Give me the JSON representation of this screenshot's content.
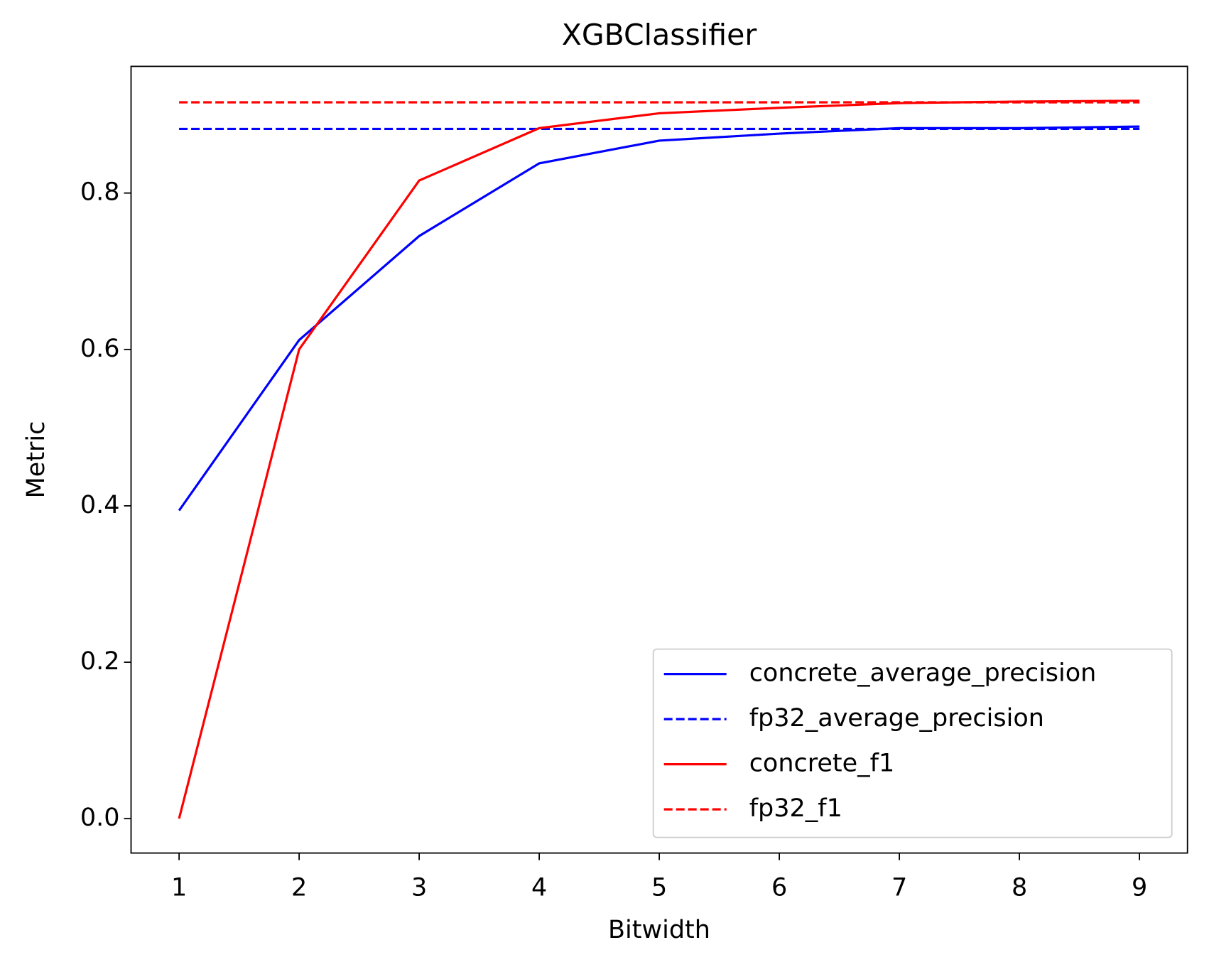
{
  "chart_data": {
    "type": "line",
    "title": "XGBClassifier",
    "xlabel": "Bitwidth",
    "ylabel": "Metric",
    "x": [
      1,
      2,
      3,
      4,
      5,
      6,
      7,
      8,
      9
    ],
    "series": [
      {
        "name": "concrete_average_precision",
        "color": "#0000ff",
        "linestyle": "solid",
        "values": [
          0.394,
          0.612,
          0.745,
          0.838,
          0.867,
          0.876,
          0.883,
          0.883,
          0.885
        ]
      },
      {
        "name": "fp32_average_precision",
        "color": "#0000ff",
        "linestyle": "dashed",
        "values": [
          0.882,
          0.882,
          0.882,
          0.882,
          0.882,
          0.882,
          0.882,
          0.882,
          0.882
        ]
      },
      {
        "name": "concrete_f1",
        "color": "#ff0000",
        "linestyle": "solid",
        "values": [
          0.0,
          0.6,
          0.816,
          0.883,
          0.902,
          0.909,
          0.915,
          0.917,
          0.918
        ]
      },
      {
        "name": "fp32_f1",
        "color": "#ff0000",
        "linestyle": "dashed",
        "values": [
          0.916,
          0.916,
          0.916,
          0.916,
          0.916,
          0.916,
          0.916,
          0.916,
          0.916
        ]
      }
    ],
    "xlim": [
      0.6,
      9.4
    ],
    "xticks": [
      1,
      2,
      3,
      4,
      5,
      6,
      7,
      8,
      9
    ],
    "ylim": [
      -0.044,
      0.962
    ],
    "yticks": [
      {
        "value": 0,
        "label": "0.0"
      },
      0.2,
      0.4,
      0.6,
      0.8
    ],
    "grid": false,
    "legend": "lower right"
  }
}
